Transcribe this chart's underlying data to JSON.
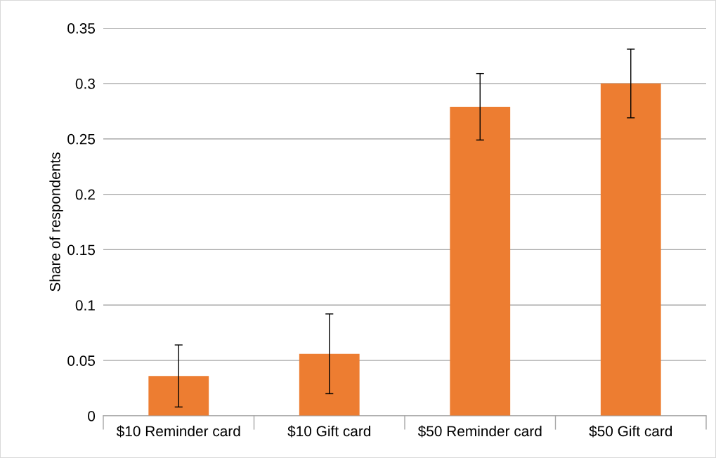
{
  "chart_data": {
    "type": "bar",
    "ylabel": "Share of respondents",
    "categories": [
      "$10 Reminder card",
      "$10 Gift card",
      "$50 Reminder card",
      "$50 Gift card"
    ],
    "values": [
      0.036,
      0.056,
      0.279,
      0.3
    ],
    "errors": [
      0.028,
      0.036,
      0.03,
      0.031
    ],
    "color": "#ed7d31",
    "ylim": [
      0,
      0.35
    ],
    "yticks": [
      0,
      0.05,
      0.1,
      0.15,
      0.2,
      0.25,
      0.3,
      0.35
    ],
    "grid": "y",
    "legend": false
  }
}
